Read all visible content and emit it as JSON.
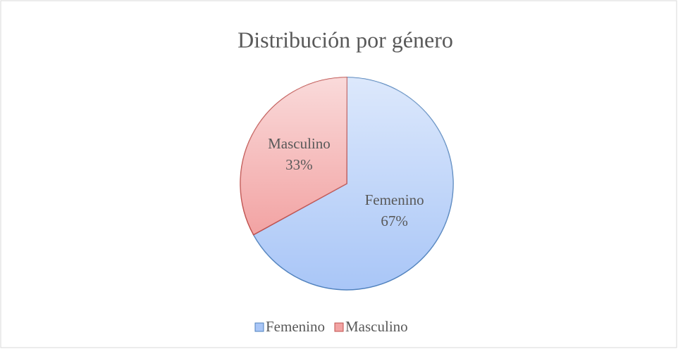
{
  "chart_data": {
    "type": "pie",
    "title": "Distribución por género",
    "categories": [
      "Femenino",
      "Masculino"
    ],
    "values": [
      67,
      33
    ],
    "value_labels": [
      "67%",
      "33%"
    ],
    "colors": [
      "#a9c6f7",
      "#f2a3a3"
    ],
    "edge_colors": [
      "#4f81bd",
      "#c0504d"
    ],
    "legend": "bottom"
  }
}
